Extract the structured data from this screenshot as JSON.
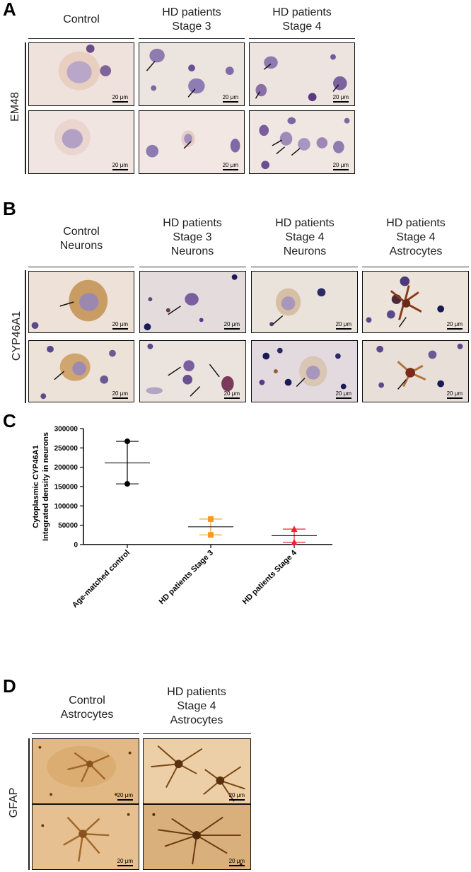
{
  "panelA": {
    "letter": "A",
    "columns": [
      {
        "lines": [
          "Control"
        ]
      },
      {
        "lines": [
          "HD patients",
          "Stage 3"
        ]
      },
      {
        "lines": [
          "HD patients",
          "Stage 4"
        ]
      }
    ],
    "row_label": "EM48",
    "scale_label": "20 μm"
  },
  "panelB": {
    "letter": "B",
    "columns": [
      {
        "lines": [
          "Control",
          "Neurons"
        ]
      },
      {
        "lines": [
          "HD patients",
          "Stage 3",
          "Neurons"
        ]
      },
      {
        "lines": [
          "HD patients",
          "Stage 4",
          "Neurons"
        ]
      },
      {
        "lines": [
          "HD patients",
          "Stage 4",
          "Astrocytes"
        ]
      }
    ],
    "row_label": "CYP46A1",
    "scale_label": "20 μm"
  },
  "panelC": {
    "letter": "C"
  },
  "chart_data": {
    "type": "scatter",
    "title": "",
    "xlabel": "",
    "ylabel": "Cytoplasmic CYP46A1\nIntegrated density in neurons",
    "categories": [
      "Age-matched control",
      "HD patients Stage 3",
      "HD patients Stage 4"
    ],
    "yticks": [
      0,
      50000,
      100000,
      150000,
      200000,
      250000,
      300000
    ],
    "ylim": [
      0,
      300000
    ],
    "grid": false,
    "series": [
      {
        "category": "Age-matched control",
        "points": [
          267000,
          157000
        ],
        "mean": 211000,
        "err_high": 267000,
        "err_low": 157000,
        "marker": "circle",
        "color": "#000000"
      },
      {
        "category": "HD patients Stage 3",
        "points": [
          66000,
          25000
        ],
        "mean": 46000,
        "err_high": 66000,
        "err_low": 25000,
        "marker": "square",
        "color": "#f39c1f"
      },
      {
        "category": "HD patients Stage 4",
        "points": [
          40000,
          6000
        ],
        "mean": 23000,
        "err_high": 40000,
        "err_low": 6000,
        "marker": "triangle",
        "color": "#e8262c"
      }
    ]
  },
  "panelD": {
    "letter": "D",
    "columns": [
      {
        "lines": [
          "Control",
          "Astrocytes"
        ]
      },
      {
        "lines": [
          "HD patients",
          "Stage 4",
          "Astrocytes"
        ]
      }
    ],
    "row_label": "GFAP",
    "scale_label": "20 μm"
  },
  "colors": {
    "he_background": "#efe3de",
    "nucleus": "#6e4f8f",
    "dab_brown": "#a8702c",
    "gfap_background": "#d9a567"
  }
}
